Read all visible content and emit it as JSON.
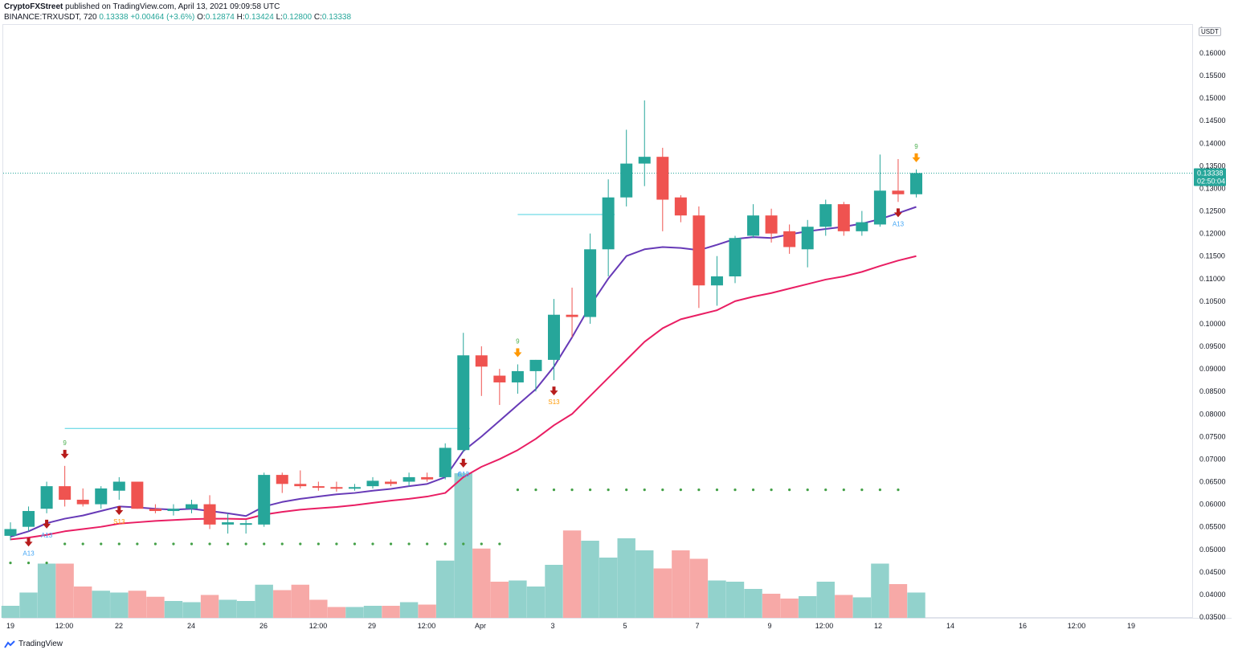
{
  "header": {
    "publisher": "CryptoFXStreet",
    "published_text": "published on TradingView.com, April 13, 2021 09:09:58 UTC",
    "symbol": "BINANCE:TRXUSDT, 720",
    "last_price": "0.13338",
    "change": "+0.00464 (+3.6%)",
    "ohlc": {
      "o_label": "O:",
      "o": "0.12874",
      "h_label": "H:",
      "h": "0.13424",
      "l_label": "L:",
      "l": "0.12800",
      "c_label": "C:",
      "c": "0.13338"
    }
  },
  "price_axis": {
    "currency": "USDT",
    "top_tick_partial": "0",
    "ticks": [
      "0.16000",
      "0.15500",
      "0.15000",
      "0.14500",
      "0.14000",
      "0.13500",
      "0.13000",
      "0.12500",
      "0.12000",
      "0.11500",
      "0.11000",
      "0.10500",
      "0.10000",
      "0.09500",
      "0.09000",
      "0.08500",
      "0.08000",
      "0.07500",
      "0.07000",
      "0.06500",
      "0.06000",
      "0.05500",
      "0.05000",
      "0.04500",
      "0.04000",
      "0.03500"
    ],
    "price_label": "0.13338",
    "countdown_label": "02:50:04"
  },
  "time_axis": {
    "labels": [
      "19",
      "12:00",
      "22",
      "24",
      "26",
      "12:00",
      "29",
      "12:00",
      "Apr",
      "3",
      "5",
      "7",
      "9",
      "12:00",
      "12",
      "14",
      "16",
      "12:00",
      "19"
    ]
  },
  "footer": {
    "brand": "TradingView"
  },
  "colors": {
    "up": "#26a69a",
    "down": "#ef5350",
    "ema_fast": "#673ab7",
    "ema_slow": "#e91e63",
    "level": "#4dd0e1",
    "volume_up": "#92d2cc",
    "volume_down": "#f7a9a7"
  },
  "chart_data": {
    "type": "candlestick",
    "ylim": [
      0.035,
      0.164
    ],
    "last_price": 0.13338,
    "candles": [
      {
        "o": 0.053,
        "h": 0.056,
        "l": 0.052,
        "c": 0.0545
      },
      {
        "o": 0.055,
        "h": 0.0595,
        "l": 0.054,
        "c": 0.0585
      },
      {
        "o": 0.059,
        "h": 0.065,
        "l": 0.058,
        "c": 0.064
      },
      {
        "o": 0.064,
        "h": 0.0685,
        "l": 0.0595,
        "c": 0.061
      },
      {
        "o": 0.061,
        "h": 0.0635,
        "l": 0.0595,
        "c": 0.06
      },
      {
        "o": 0.06,
        "h": 0.064,
        "l": 0.059,
        "c": 0.0635
      },
      {
        "o": 0.063,
        "h": 0.066,
        "l": 0.061,
        "c": 0.065
      },
      {
        "o": 0.065,
        "h": 0.065,
        "l": 0.059,
        "c": 0.059
      },
      {
        "o": 0.059,
        "h": 0.06,
        "l": 0.058,
        "c": 0.0585
      },
      {
        "o": 0.0585,
        "h": 0.06,
        "l": 0.0575,
        "c": 0.059
      },
      {
        "o": 0.059,
        "h": 0.061,
        "l": 0.058,
        "c": 0.06
      },
      {
        "o": 0.06,
        "h": 0.062,
        "l": 0.0545,
        "c": 0.0555
      },
      {
        "o": 0.0555,
        "h": 0.058,
        "l": 0.0535,
        "c": 0.056
      },
      {
        "o": 0.0555,
        "h": 0.0565,
        "l": 0.0535,
        "c": 0.0558
      },
      {
        "o": 0.0555,
        "h": 0.067,
        "l": 0.055,
        "c": 0.0665
      },
      {
        "o": 0.0665,
        "h": 0.067,
        "l": 0.0625,
        "c": 0.0645
      },
      {
        "o": 0.0645,
        "h": 0.0675,
        "l": 0.0635,
        "c": 0.064
      },
      {
        "o": 0.064,
        "h": 0.065,
        "l": 0.063,
        "c": 0.0638
      },
      {
        "o": 0.0638,
        "h": 0.065,
        "l": 0.0628,
        "c": 0.0636
      },
      {
        "o": 0.0636,
        "h": 0.0645,
        "l": 0.063,
        "c": 0.0638
      },
      {
        "o": 0.064,
        "h": 0.066,
        "l": 0.0635,
        "c": 0.0652
      },
      {
        "o": 0.065,
        "h": 0.0655,
        "l": 0.064,
        "c": 0.0645
      },
      {
        "o": 0.065,
        "h": 0.067,
        "l": 0.064,
        "c": 0.066
      },
      {
        "o": 0.066,
        "h": 0.067,
        "l": 0.065,
        "c": 0.0655
      },
      {
        "o": 0.066,
        "h": 0.0735,
        "l": 0.0655,
        "c": 0.0725
      },
      {
        "o": 0.072,
        "h": 0.098,
        "l": 0.0715,
        "c": 0.093
      },
      {
        "o": 0.093,
        "h": 0.095,
        "l": 0.084,
        "c": 0.0905
      },
      {
        "o": 0.0885,
        "h": 0.09,
        "l": 0.082,
        "c": 0.087
      },
      {
        "o": 0.087,
        "h": 0.091,
        "l": 0.0845,
        "c": 0.0895
      },
      {
        "o": 0.0895,
        "h": 0.092,
        "l": 0.085,
        "c": 0.092
      },
      {
        "o": 0.092,
        "h": 0.1055,
        "l": 0.0875,
        "c": 0.102
      },
      {
        "o": 0.102,
        "h": 0.108,
        "l": 0.097,
        "c": 0.1015
      },
      {
        "o": 0.1015,
        "h": 0.12,
        "l": 0.1,
        "c": 0.1165
      },
      {
        "o": 0.1165,
        "h": 0.132,
        "l": 0.1105,
        "c": 0.128
      },
      {
        "o": 0.128,
        "h": 0.143,
        "l": 0.126,
        "c": 0.1355
      },
      {
        "o": 0.1355,
        "h": 0.1495,
        "l": 0.1305,
        "c": 0.137
      },
      {
        "o": 0.137,
        "h": 0.139,
        "l": 0.1205,
        "c": 0.1275
      },
      {
        "o": 0.128,
        "h": 0.1285,
        "l": 0.1225,
        "c": 0.124
      },
      {
        "o": 0.124,
        "h": 0.126,
        "l": 0.1035,
        "c": 0.1085
      },
      {
        "o": 0.1085,
        "h": 0.115,
        "l": 0.104,
        "c": 0.1105
      },
      {
        "o": 0.1105,
        "h": 0.1195,
        "l": 0.109,
        "c": 0.119
      },
      {
        "o": 0.1195,
        "h": 0.1265,
        "l": 0.119,
        "c": 0.124
      },
      {
        "o": 0.124,
        "h": 0.1255,
        "l": 0.118,
        "c": 0.12
      },
      {
        "o": 0.1205,
        "h": 0.122,
        "l": 0.1155,
        "c": 0.117
      },
      {
        "o": 0.1165,
        "h": 0.123,
        "l": 0.1125,
        "c": 0.1215
      },
      {
        "o": 0.1215,
        "h": 0.1275,
        "l": 0.1195,
        "c": 0.1265
      },
      {
        "o": 0.1265,
        "h": 0.127,
        "l": 0.1195,
        "c": 0.1205
      },
      {
        "o": 0.1205,
        "h": 0.125,
        "l": 0.1195,
        "c": 0.1225
      },
      {
        "o": 0.122,
        "h": 0.1375,
        "l": 0.1215,
        "c": 0.1295
      },
      {
        "o": 0.1295,
        "h": 0.1365,
        "l": 0.127,
        "c": 0.1287
      },
      {
        "o": 0.1287,
        "h": 0.1342,
        "l": 0.128,
        "c": 0.1334
      }
    ],
    "volume": [
      0.2,
      0.42,
      0.9,
      0.9,
      0.52,
      0.45,
      0.42,
      0.45,
      0.35,
      0.28,
      0.26,
      0.38,
      0.3,
      0.28,
      0.55,
      0.46,
      0.55,
      0.3,
      0.18,
      0.18,
      0.2,
      0.2,
      0.26,
      0.22,
      0.95,
      2.4,
      1.15,
      0.6,
      0.62,
      0.52,
      0.88,
      1.45,
      1.28,
      1.0,
      1.32,
      1.12,
      0.82,
      1.12,
      0.98,
      0.62,
      0.6,
      0.48,
      0.4,
      0.32,
      0.36,
      0.6,
      0.38,
      0.34,
      0.9,
      0.56,
      0.42
    ],
    "ema_fast": [
      0.0528,
      0.054,
      0.0558,
      0.0568,
      0.0575,
      0.0585,
      0.0595,
      0.0593,
      0.059,
      0.0588,
      0.059,
      0.0585,
      0.058,
      0.0574,
      0.0595,
      0.0605,
      0.0612,
      0.0617,
      0.0622,
      0.0625,
      0.063,
      0.0634,
      0.064,
      0.0645,
      0.066,
      0.0718,
      0.075,
      0.0785,
      0.082,
      0.0855,
      0.0905,
      0.097,
      0.104,
      0.11,
      0.115,
      0.1165,
      0.117,
      0.1168,
      0.1163,
      0.1175,
      0.1188,
      0.1192,
      0.119,
      0.1198,
      0.1205,
      0.121,
      0.1215,
      0.1222,
      0.1232,
      0.1245,
      0.1259
    ],
    "ema_slow": [
      0.0522,
      0.0526,
      0.0532,
      0.054,
      0.0545,
      0.055,
      0.0557,
      0.056,
      0.0563,
      0.0565,
      0.0567,
      0.0568,
      0.0568,
      0.0567,
      0.0577,
      0.0583,
      0.0588,
      0.0591,
      0.0594,
      0.0598,
      0.0603,
      0.0608,
      0.0612,
      0.0617,
      0.0625,
      0.066,
      0.0683,
      0.07,
      0.072,
      0.0745,
      0.0775,
      0.08,
      0.084,
      0.088,
      0.092,
      0.096,
      0.099,
      0.101,
      0.102,
      0.103,
      0.105,
      0.106,
      0.1068,
      0.1078,
      0.1088,
      0.1098,
      0.1105,
      0.1115,
      0.1128,
      0.114,
      0.115
    ],
    "levels": [
      {
        "price": 0.0768,
        "from_candle": 3,
        "to_candle": 25
      },
      {
        "price": 0.1242,
        "from_candle": 28,
        "to_candle": 33
      }
    ],
    "dot_lines": [
      {
        "price": 0.0512,
        "from_candle": 3,
        "to_candle": 27
      },
      {
        "price": 0.047,
        "from_candle": 0,
        "to_candle": 2
      },
      {
        "price": 0.0632,
        "from_candle": 28,
        "to_candle": 49
      }
    ],
    "signals": [
      {
        "candle": 1,
        "type": "down_arrow",
        "color": "#b71c1c",
        "where": "below",
        "label": "A13",
        "label_color": "#42a5f5"
      },
      {
        "candle": 2,
        "type": "down_arrow",
        "color": "#b71c1c",
        "where": "below",
        "label": "A13",
        "label_color": "#42a5f5"
      },
      {
        "candle": 3,
        "type": "down_arrow",
        "color": "#b71c1c",
        "where": "above",
        "label": "9",
        "label_color": "#4caf50"
      },
      {
        "candle": 6,
        "type": "down_arrow",
        "color": "#b71c1c",
        "where": "below",
        "label": "S13",
        "label_color": "#ff9800"
      },
      {
        "candle": 25,
        "type": "down_arrow",
        "color": "#b71c1c",
        "where": "below",
        "label": "C13",
        "label_color": "#42a5f5"
      },
      {
        "candle": 25,
        "type": "text",
        "where": "below2",
        "label": "A13",
        "label_color": "#42a5f5"
      },
      {
        "candle": 28,
        "type": "down_arrow",
        "color": "#ff9800",
        "where": "above",
        "label": "9",
        "label_color": "#4caf50"
      },
      {
        "candle": 30,
        "type": "down_arrow",
        "color": "#b71c1c",
        "where": "below",
        "label": "S13",
        "label_color": "#ff9800"
      },
      {
        "candle": 49,
        "type": "down_arrow",
        "color": "#b71c1c",
        "where": "below",
        "label": "A13",
        "label_color": "#42a5f5"
      },
      {
        "candle": 50,
        "type": "down_arrow",
        "color": "#ff9800",
        "where": "above",
        "label": "9",
        "label_color": "#4caf50"
      }
    ]
  }
}
